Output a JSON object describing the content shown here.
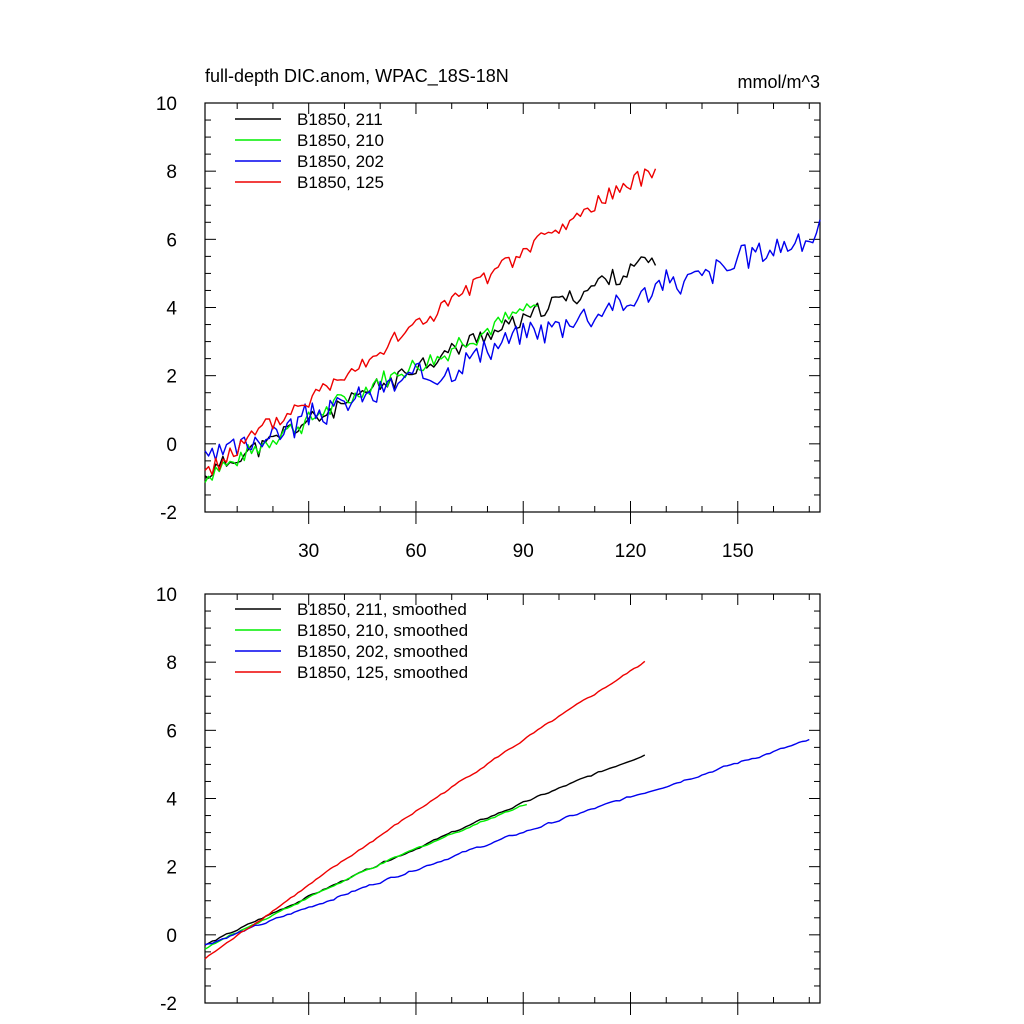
{
  "chart_data": [
    {
      "type": "line",
      "title": "full-depth DIC.anom, WPAC_18S-18N",
      "units": "mmol/m^3",
      "xlabel": "",
      "ylabel": "",
      "xlim": [
        1,
        173
      ],
      "ylim": [
        -2,
        10
      ],
      "x_ticks": [
        30,
        60,
        90,
        120,
        150
      ],
      "x_tick_labels": [
        "30",
        "60",
        "90",
        "120",
        "150"
      ],
      "y_ticks": [
        -2,
        0,
        2,
        4,
        6,
        8,
        10
      ],
      "y_tick_labels": [
        "-2",
        "0",
        "2",
        "4",
        "6",
        "8",
        "10"
      ],
      "legend_position": "top-left",
      "series": [
        {
          "name": "B1850, 211",
          "color": "#000000",
          "length": 127,
          "start": -0.9,
          "end": 5.45,
          "noise": 0.25,
          "seed": 11
        },
        {
          "name": "B1850, 210",
          "color": "#00ee00",
          "length": 94,
          "start": -0.95,
          "end": 4.0,
          "noise": 0.25,
          "seed": 7
        },
        {
          "name": "B1850, 202",
          "color": "#0000ee",
          "length": 173,
          "start": -0.45,
          "end": 6.2,
          "noise": 0.35,
          "seed": 3
        },
        {
          "name": "B1850, 125",
          "color": "#ee0000",
          "length": 127,
          "start": -0.85,
          "end": 8.1,
          "noise": 0.25,
          "seed": 5
        }
      ]
    },
    {
      "type": "line",
      "title": "",
      "xlabel": "",
      "ylabel": "",
      "xlim": [
        1,
        173
      ],
      "ylim": [
        -2,
        10
      ],
      "x_ticks": [
        30,
        60,
        90,
        120,
        150
      ],
      "y_ticks": [
        -2,
        0,
        2,
        4,
        6,
        8,
        10
      ],
      "y_tick_labels": [
        "-2",
        "0",
        "2",
        "4",
        "6",
        "8",
        "10"
      ],
      "legend_position": "top-left",
      "series": [
        {
          "name": "B1850, 211, smoothed",
          "color": "#000000",
          "length": 124,
          "start": -0.3,
          "end": 5.3,
          "noise": 0.05,
          "seed": 11
        },
        {
          "name": "B1850, 210, smoothed",
          "color": "#00ee00",
          "length": 91,
          "start": -0.4,
          "end": 3.85,
          "noise": 0.05,
          "seed": 7
        },
        {
          "name": "B1850, 202, smoothed",
          "color": "#0000ee",
          "length": 170,
          "start": -0.3,
          "end": 5.7,
          "noise": 0.06,
          "seed": 3
        },
        {
          "name": "B1850, 125, smoothed",
          "color": "#ee0000",
          "length": 124,
          "start": -0.7,
          "end": 8.0,
          "noise": 0.05,
          "seed": 5
        }
      ]
    }
  ]
}
